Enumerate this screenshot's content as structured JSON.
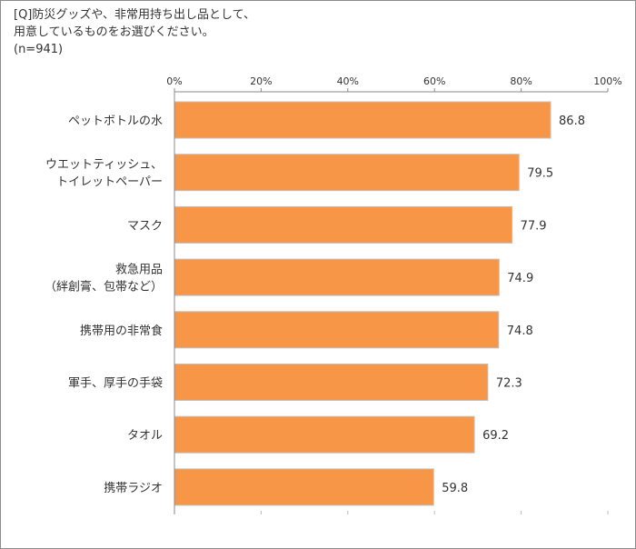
{
  "question": {
    "line1": "[Q]防災グッズや、非常用持ち出し品として、",
    "line2": "用意しているものをお選びください。",
    "line3": "(n=941)"
  },
  "colors": {
    "bar": "#f79646",
    "bar_border": "#c0c0c0",
    "axis": "#888888"
  },
  "chart_data": {
    "type": "bar",
    "orientation": "horizontal",
    "xlim": [
      0,
      100
    ],
    "ticks": [
      "0%",
      "20%",
      "40%",
      "60%",
      "80%",
      "100%"
    ],
    "tick_values": [
      0,
      20,
      40,
      60,
      80,
      100
    ],
    "grid": false,
    "categories": [
      [
        "ペットボトルの水"
      ],
      [
        "ウエットティッシュ、",
        "トイレットペーパー"
      ],
      [
        "マスク"
      ],
      [
        "救急用品",
        "（絆創膏、包帯など）"
      ],
      [
        "携帯用の非常食"
      ],
      [
        "軍手、厚手の手袋"
      ],
      [
        "タオル"
      ],
      [
        "携帯ラジオ"
      ]
    ],
    "values": [
      86.8,
      79.5,
      77.9,
      74.9,
      74.8,
      72.3,
      69.2,
      59.8
    ],
    "value_labels": [
      "86.8",
      "79.5",
      "77.9",
      "74.9",
      "74.8",
      "72.3",
      "69.2",
      "59.8"
    ]
  }
}
